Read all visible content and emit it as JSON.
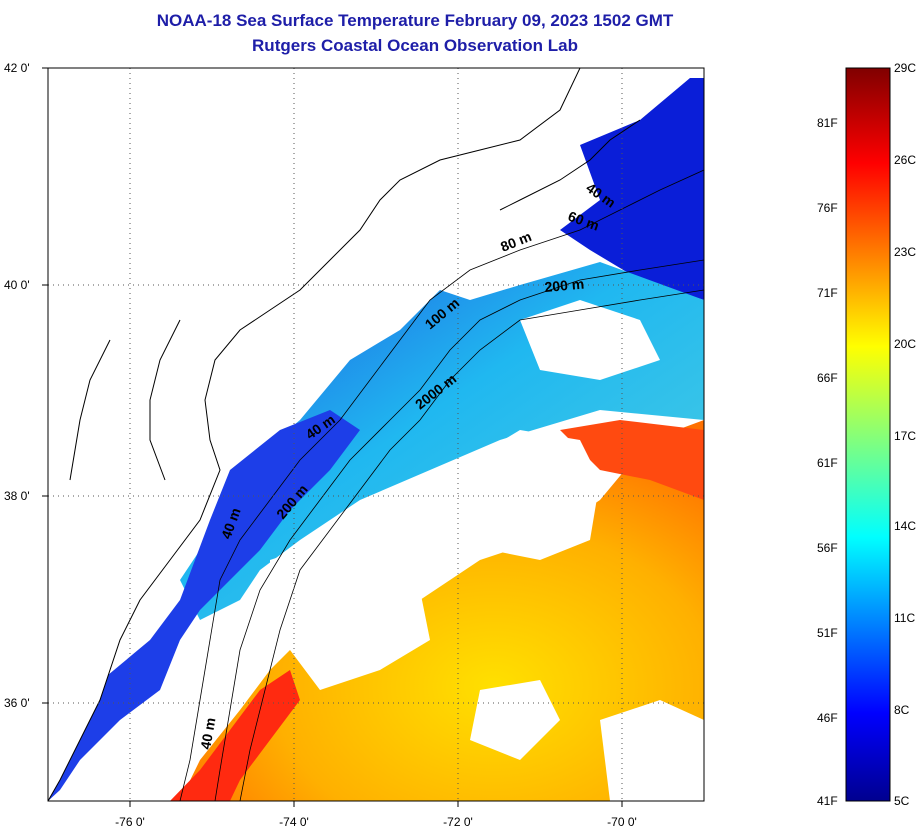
{
  "title_line1": "NOAA-18 Sea Surface Temperature February 09, 2023 1502 GMT",
  "title_line2": "Rutgers Coastal Ocean Observation Lab",
  "lat_labels": [
    "42 0'",
    "40 0'",
    "38 0'",
    "36 0'"
  ],
  "lon_labels": [
    "-76 0'",
    "-74 0'",
    "-72 0'",
    "-70 0'"
  ],
  "contour_labels": [
    "40 m",
    "60 m",
    "80 m",
    "200 m",
    "100 m",
    "2000 m",
    "40 m",
    "200 m",
    "40 m",
    "40 m"
  ],
  "colorbar": {
    "celsius": [
      "29C",
      "26C",
      "23C",
      "20C",
      "17C",
      "14C",
      "11C",
      "8C",
      "5C"
    ],
    "fahrenheit": [
      "81F",
      "76F",
      "71F",
      "66F",
      "61F",
      "56F",
      "51F",
      "46F",
      "41F"
    ],
    "min_c": 5,
    "max_c": 29
  },
  "colors": {
    "title": "#1e1ea8",
    "land": "#ffffff",
    "cloud": "#ffffff"
  }
}
